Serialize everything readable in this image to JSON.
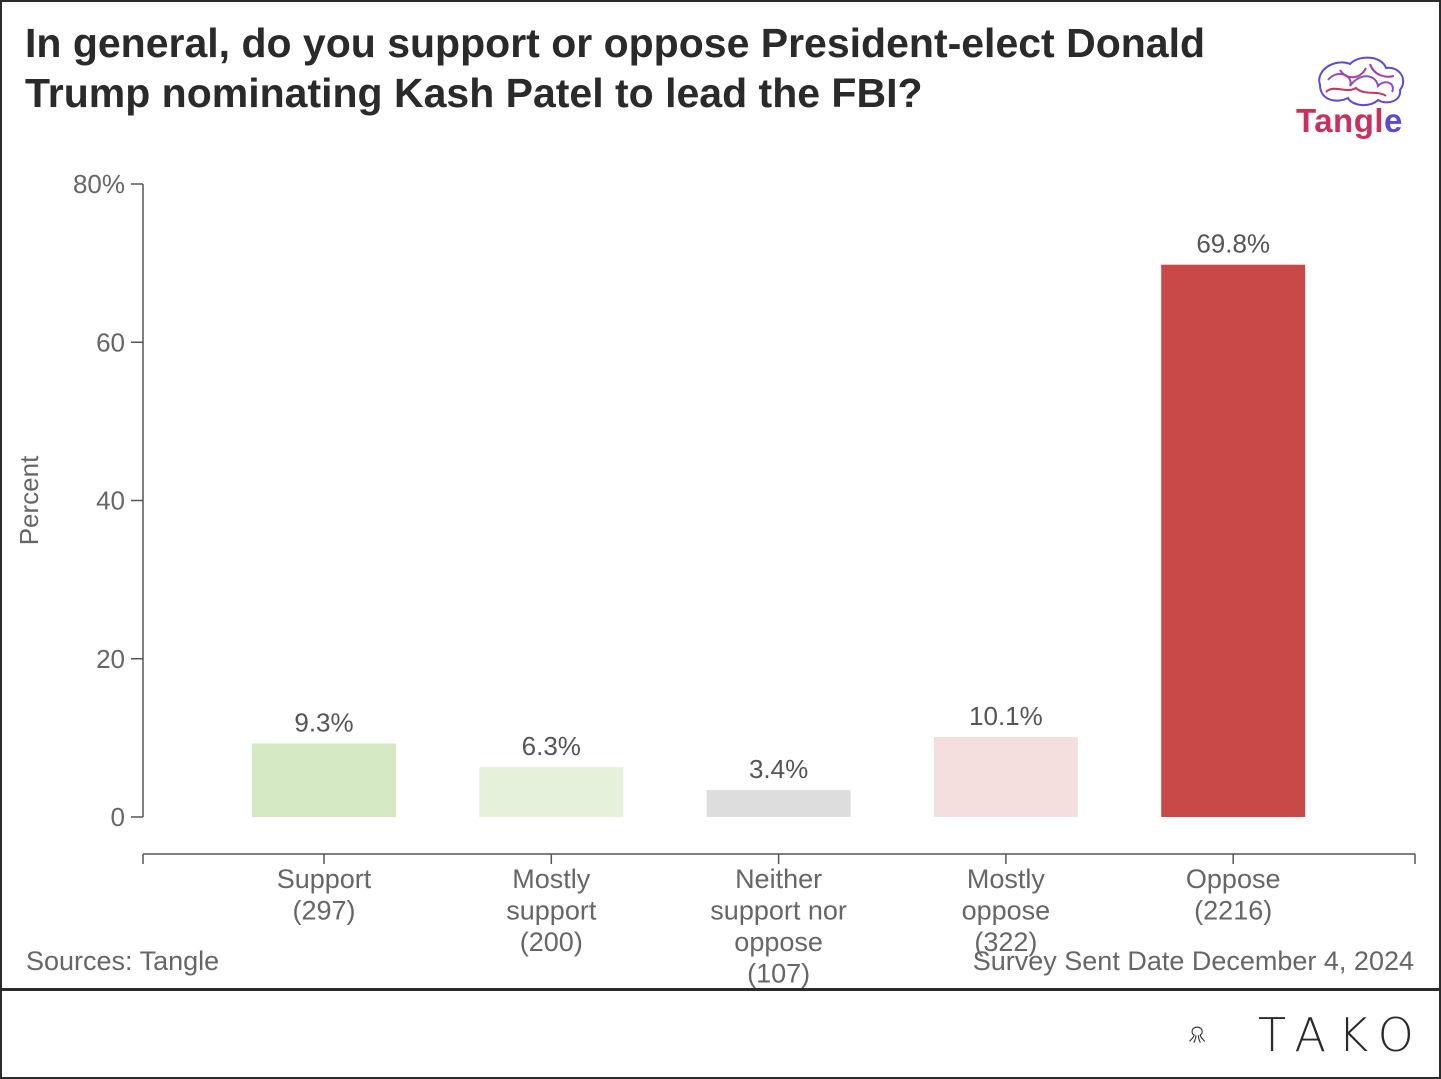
{
  "title": "In general, do you support or oppose President-elect Donald Trump nominating Kash Patel to lead the FBI?",
  "brand": {
    "logo_text_main": "Tangl",
    "logo_text_end": "e",
    "logo_icon": "brain-icon",
    "footer_logo": "TAKO",
    "footer_icon": "tako-octopus-icon"
  },
  "footer": {
    "source": "Sources: Tangle",
    "survey_date": "Survey Sent Date December 4, 2024"
  },
  "chart_data": {
    "type": "bar",
    "title": "In general, do you support or oppose President-elect Donald Trump nominating Kash Patel to lead the FBI?",
    "ylabel": "Percent",
    "xlabel": "",
    "ylim": [
      0,
      80
    ],
    "yticks": [
      0,
      20,
      40,
      60,
      80
    ],
    "ytick_labels": [
      "0",
      "20",
      "40",
      "60",
      "80%"
    ],
    "grid": false,
    "categories": [
      [
        "Support",
        "(297)"
      ],
      [
        "Mostly",
        "support",
        "(200)"
      ],
      [
        "Neither",
        "support nor",
        "oppose",
        "(107)"
      ],
      [
        "Mostly",
        "oppose",
        "(322)"
      ],
      [
        "Oppose",
        "(2216)"
      ]
    ],
    "values": [
      9.3,
      6.3,
      3.4,
      10.1,
      69.8
    ],
    "value_labels": [
      "9.3%",
      "6.3%",
      "3.4%",
      "10.1%",
      "69.8%"
    ],
    "colors": [
      "#d5e8c4",
      "#e6f1dc",
      "#dddddd",
      "#f4dede",
      "#c94848"
    ]
  }
}
